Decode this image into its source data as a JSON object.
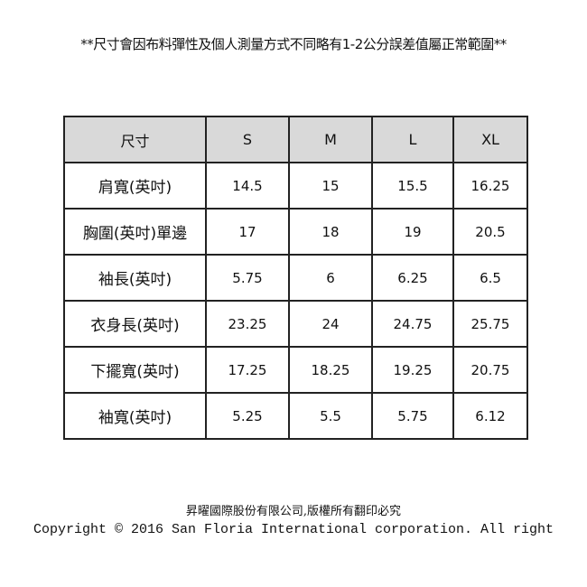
{
  "note": "**尺寸會因布料彈性及個人測量方式不同略有1-2公分誤差值屬正常範圍**",
  "table": {
    "headers": [
      "尺寸",
      "S",
      "M",
      "L",
      "XL"
    ],
    "rows": [
      {
        "label": "肩寬(英吋)",
        "values": [
          "14.5",
          "15",
          "15.5",
          "16.25"
        ]
      },
      {
        "label": "胸圍(英吋)單邊",
        "values": [
          "17",
          "18",
          "19",
          "20.5"
        ]
      },
      {
        "label": "袖長(英吋)",
        "values": [
          "5.75",
          "6",
          "6.25",
          "6.5"
        ]
      },
      {
        "label": "衣身長(英吋)",
        "values": [
          "23.25",
          "24",
          "24.75",
          "25.75"
        ]
      },
      {
        "label": "下擺寬(英吋)",
        "values": [
          "17.25",
          "18.25",
          "19.25",
          "20.75"
        ]
      },
      {
        "label": "袖寬(英吋)",
        "values": [
          "5.25",
          "5.5",
          "5.75",
          "6.12"
        ]
      }
    ]
  },
  "footer": {
    "line1": "昇曜國際股份有限公司,版權所有翻印必究",
    "line2": "Copyright © 2016 San Floria International corporation. All right"
  }
}
